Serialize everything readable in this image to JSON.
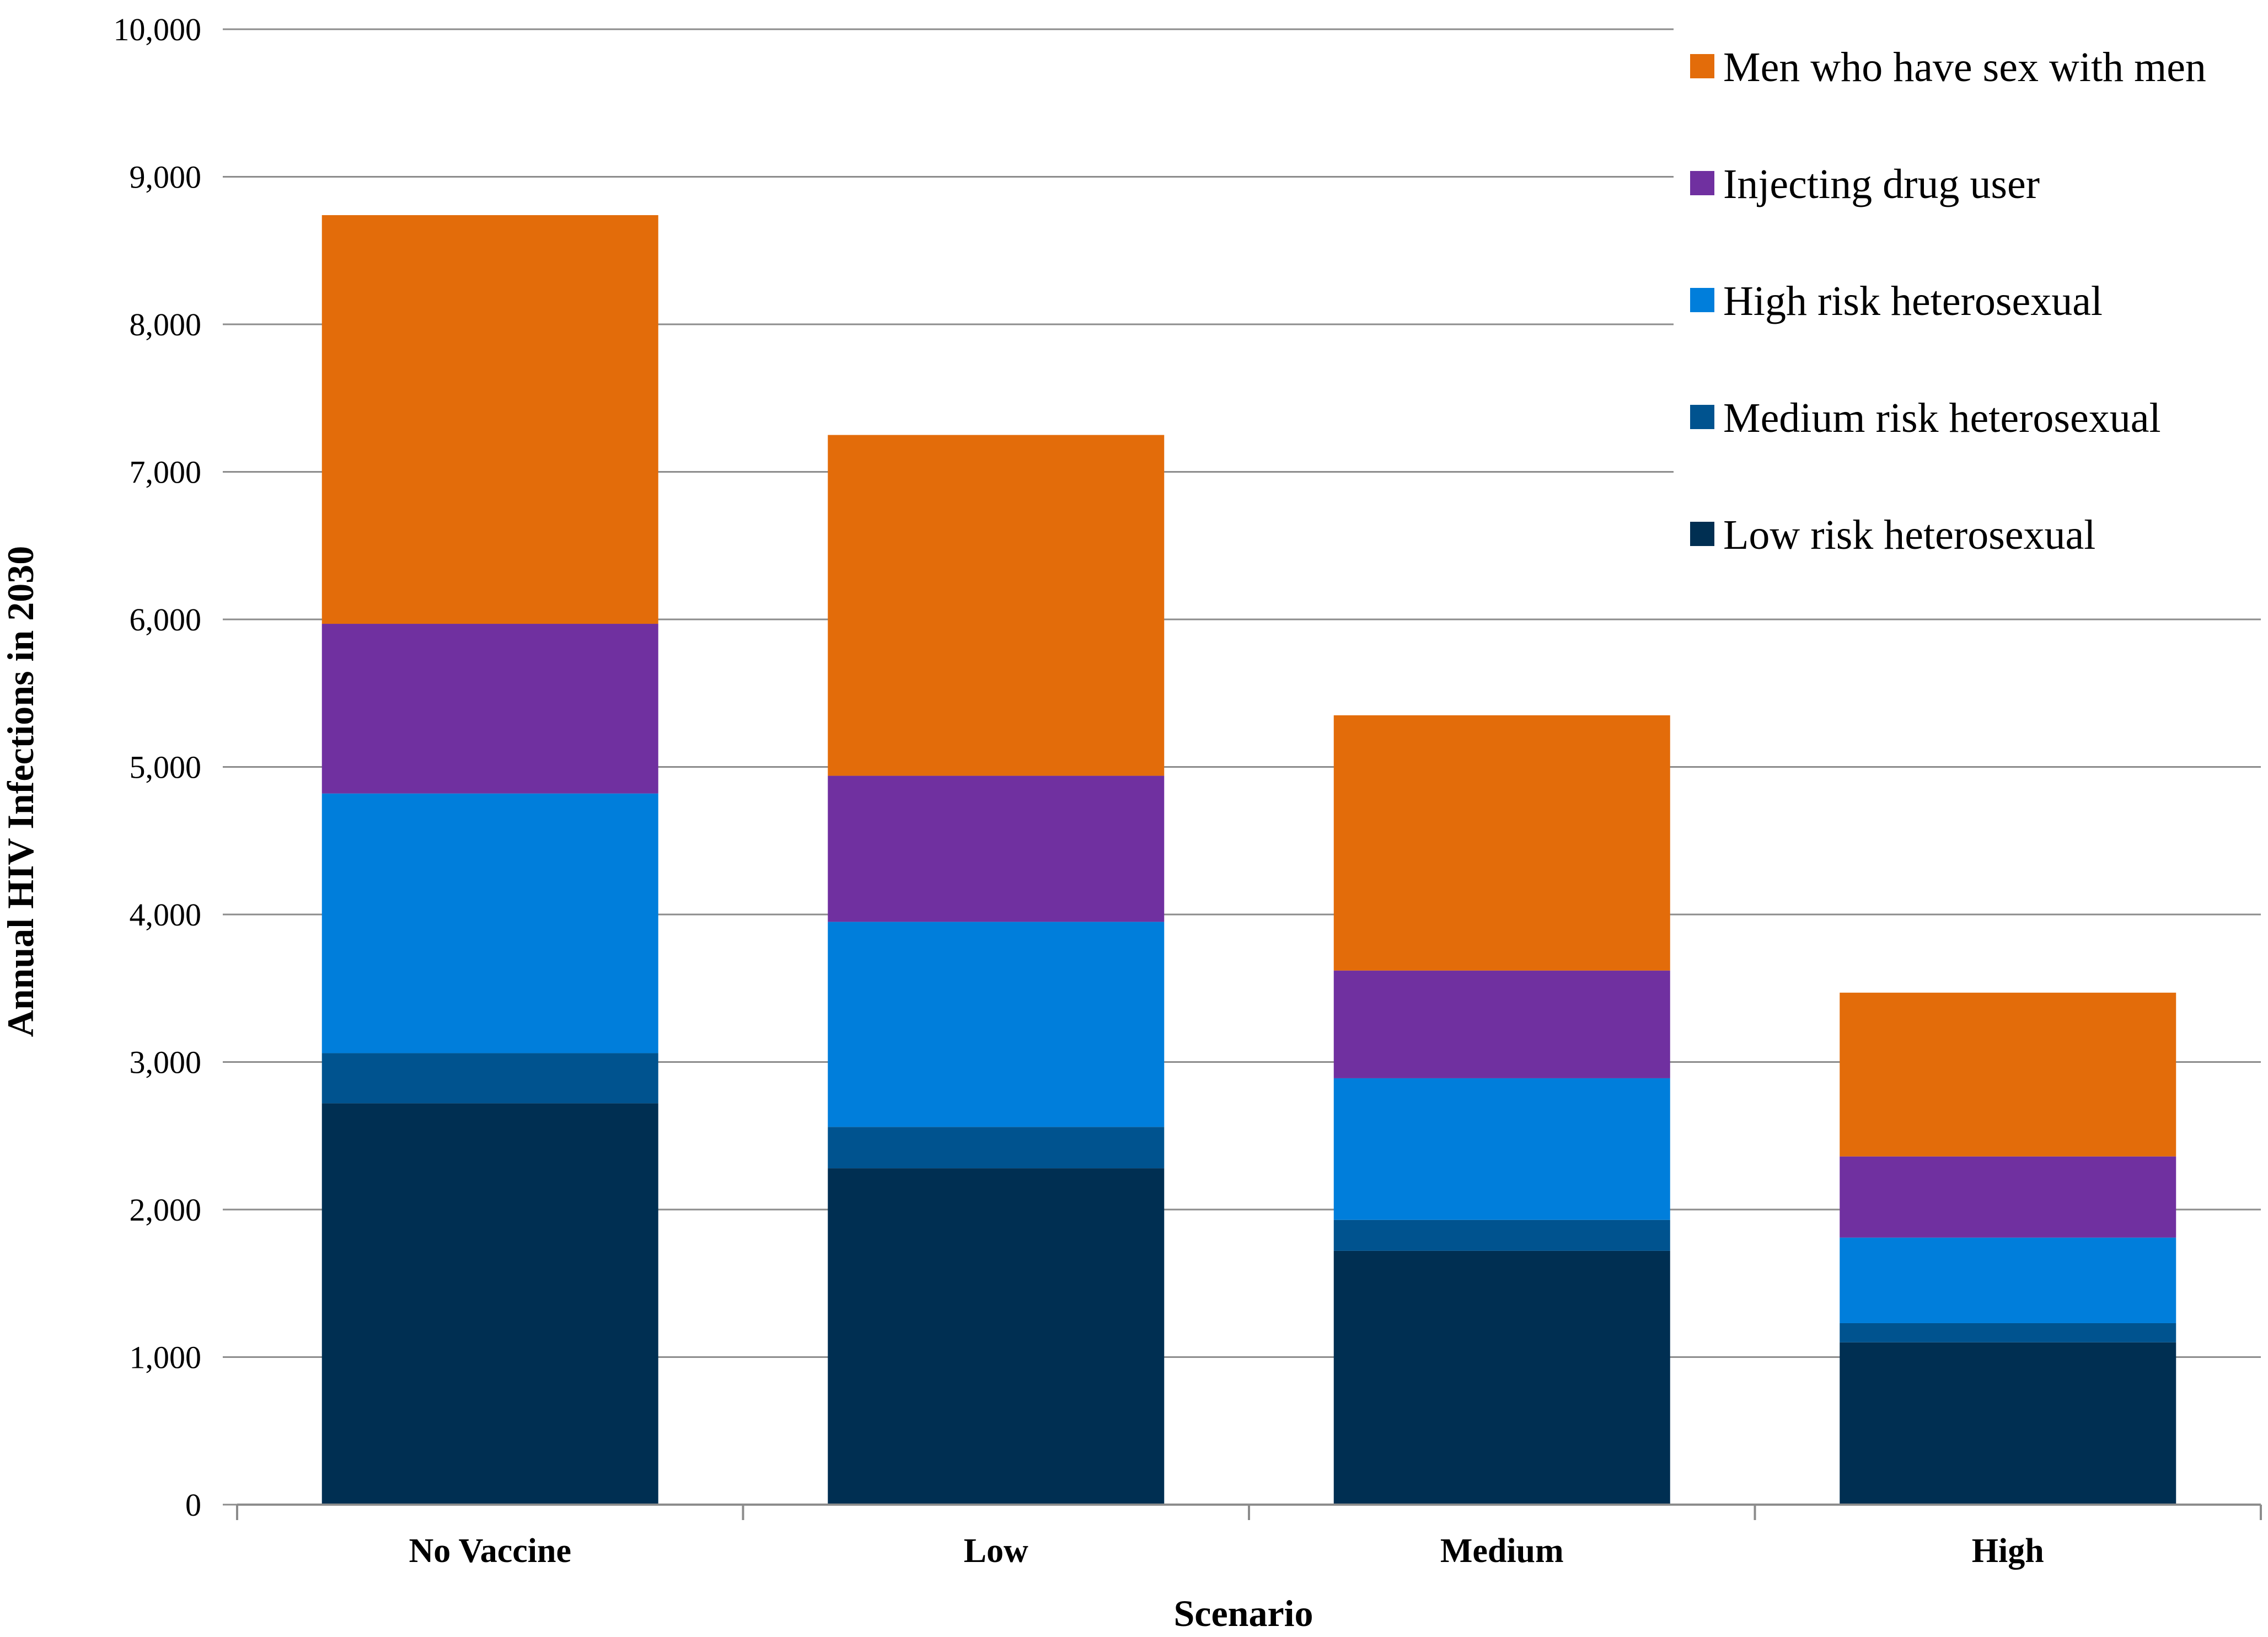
{
  "chart_data": {
    "type": "bar",
    "stacked": true,
    "title": "",
    "xlabel": "Scenario",
    "ylabel": "Annual  HIV Infections in 2030",
    "ylim": [
      0,
      10000
    ],
    "yticks": [
      0,
      1000,
      2000,
      3000,
      4000,
      5000,
      6000,
      7000,
      8000,
      9000,
      10000
    ],
    "ytick_labels": [
      "0",
      "1,000",
      "2,000",
      "3,000",
      "4,000",
      "5,000",
      "6,000",
      "7,000",
      "8,000",
      "9,000",
      "10,000"
    ],
    "grid": true,
    "legend_position": "top-right",
    "categories": [
      "No Vaccine",
      "Low",
      "Medium",
      "High"
    ],
    "series": [
      {
        "name": "Low risk heterosexual",
        "color": "#002F52",
        "values": [
          2720,
          2280,
          1720,
          1100
        ]
      },
      {
        "name": "Medium risk heterosexual",
        "color": "#00538F",
        "values": [
          340,
          280,
          210,
          130
        ]
      },
      {
        "name": "High risk heterosexual",
        "color": "#007EDB",
        "values": [
          1760,
          1390,
          960,
          580
        ]
      },
      {
        "name": "Injecting drug user",
        "color": "#7030A0",
        "values": [
          1150,
          990,
          730,
          550
        ]
      },
      {
        "name": "Men who have sex with men",
        "color": "#E36C0A",
        "values": [
          2770,
          2310,
          1730,
          1110
        ]
      }
    ]
  }
}
